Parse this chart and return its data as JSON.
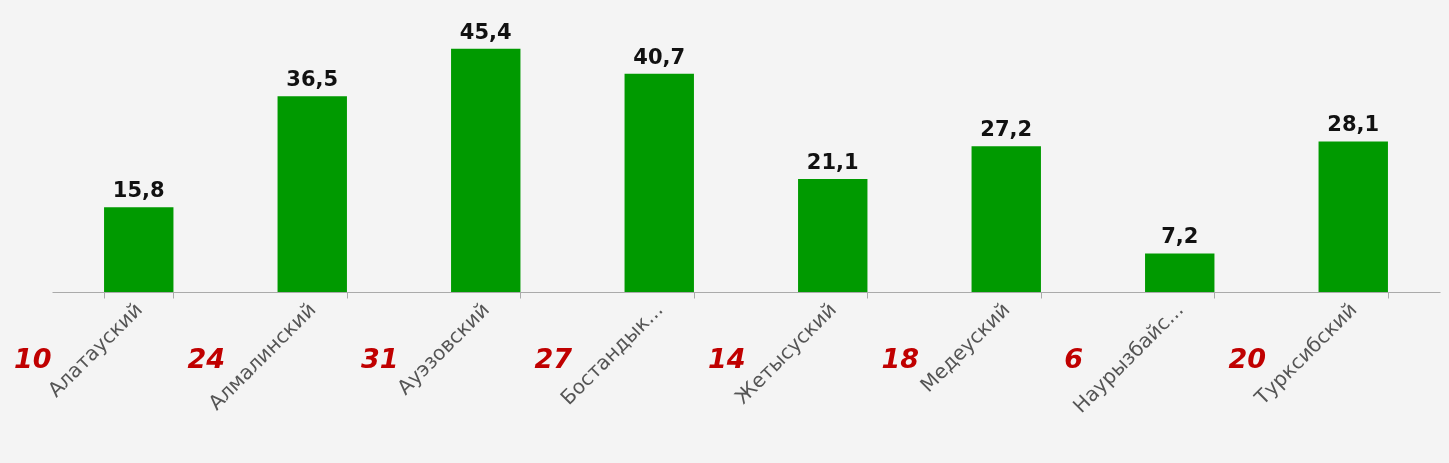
{
  "chart_data": {
    "type": "bar",
    "categories": [
      "Алатауский",
      "Алмалинский",
      "Ауэзовский",
      "Бостандык...",
      "Жетысуский",
      "Медеуский",
      "Наурызбайс...",
      "Турксибский"
    ],
    "values": [
      15.8,
      36.5,
      45.4,
      40.7,
      21.1,
      27.2,
      7.2,
      28.1
    ],
    "value_labels": [
      "15,8",
      "36,5",
      "45,4",
      "40,7",
      "21,1",
      "27,2",
      "7,2",
      "28,1"
    ],
    "color": "#009a00",
    "grid": false,
    "annotations": [
      "10",
      "24",
      "31",
      "27",
      "14",
      "18",
      "6",
      "20"
    ]
  }
}
